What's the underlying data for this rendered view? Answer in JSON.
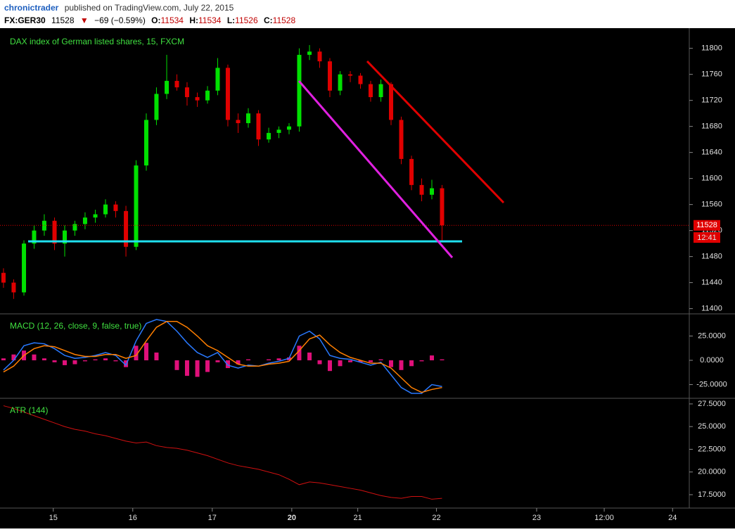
{
  "header": {
    "user": "chronictrader",
    "published": "published on TradingView.com, July 22, 2015",
    "symbol": "FX:GER30",
    "price": 11528,
    "arrow": "▼",
    "change": "−69 (−0.59%)",
    "ohlc_labels": [
      "O:",
      "H:",
      "L:",
      "C:"
    ],
    "ohlc": [
      11534,
      11534,
      11526,
      11528
    ]
  },
  "countdown": "12:41",
  "chart_data": [
    {
      "type": "candlestick",
      "title": "DAX index of German listed shares, 15, FXCM",
      "up_color": "#00e000",
      "down_color": "#e00000",
      "last_price": 11528,
      "last_price_color": "#e00000",
      "x": [
        0.374,
        0.502,
        0.631,
        0.759,
        0.887,
        1.016,
        1.144,
        1.272,
        1.4,
        1.529,
        1.657,
        1.785,
        1.914,
        2.042,
        2.17,
        2.298,
        2.427,
        2.555,
        2.683,
        2.812,
        2.94,
        3.068,
        3.196,
        3.325,
        3.453,
        3.581,
        3.71,
        3.838,
        3.966,
        4.094,
        4.223,
        4.351,
        4.479,
        4.608,
        4.736,
        4.864,
        4.992,
        5.121,
        5.249,
        5.377,
        5.506,
        5.634,
        5.762,
        5.89
      ],
      "open": [
        11455,
        11440,
        11425,
        11500,
        11520,
        11535,
        11500,
        11520,
        11530,
        11540,
        11545,
        11560,
        11550,
        11495,
        11620,
        11690,
        11730,
        11750,
        11740,
        11725,
        11720,
        11735,
        11770,
        11690,
        11685,
        11700,
        11660,
        11670,
        11675,
        11680,
        11790,
        11795,
        11780,
        11735,
        11760,
        11758,
        11745,
        11725,
        11745,
        11690,
        11630,
        11590,
        11575,
        11585
      ],
      "high": [
        11462,
        11445,
        11505,
        11528,
        11545,
        11540,
        11528,
        11535,
        11548,
        11552,
        11568,
        11565,
        11558,
        11628,
        11700,
        11740,
        11790,
        11760,
        11748,
        11732,
        11742,
        11785,
        11775,
        11700,
        11708,
        11705,
        11678,
        11680,
        11685,
        11800,
        11805,
        11800,
        11785,
        11765,
        11765,
        11762,
        11750,
        11752,
        11748,
        11695,
        11635,
        11600,
        11598,
        11590
      ],
      "low": [
        11432,
        11415,
        11420,
        11492,
        11512,
        11490,
        11480,
        11512,
        11522,
        11532,
        11540,
        11540,
        11480,
        11490,
        11612,
        11682,
        11722,
        11735,
        11712,
        11710,
        11715,
        11728,
        11680,
        11670,
        11678,
        11650,
        11655,
        11662,
        11668,
        11672,
        11782,
        11770,
        11725,
        11728,
        11748,
        11738,
        11718,
        11718,
        11682,
        11622,
        11582,
        11565,
        11568,
        11505
      ],
      "close": [
        11440,
        11425,
        11500,
        11520,
        11535,
        11500,
        11520,
        11530,
        11540,
        11545,
        11560,
        11550,
        11495,
        11620,
        11690,
        11730,
        11750,
        11740,
        11725,
        11720,
        11735,
        11770,
        11690,
        11685,
        11700,
        11660,
        11670,
        11675,
        11680,
        11790,
        11795,
        11780,
        11735,
        11760,
        11758,
        11745,
        11725,
        11745,
        11690,
        11630,
        11590,
        11575,
        11585,
        11528
      ],
      "xlim": [
        0.33,
        9.0
      ],
      "xticks": [
        {
          "value": 1,
          "label": "15"
        },
        {
          "value": 2,
          "label": "16"
        },
        {
          "value": 3,
          "label": "17"
        },
        {
          "value": 4,
          "label": "20"
        },
        {
          "value": 4.83,
          "label": "21"
        },
        {
          "value": 5.82,
          "label": "22"
        },
        {
          "value": 7.08,
          "label": "23"
        },
        {
          "value": 7.93,
          "label": "12:00"
        },
        {
          "value": 8.79,
          "label": "24"
        }
      ],
      "ylim": [
        11392,
        11831
      ],
      "yticks": [
        11400,
        11440,
        11480,
        11520,
        11560,
        11600,
        11640,
        11680,
        11720,
        11760,
        11800
      ]
    },
    {
      "type": "macd",
      "title": "MACD (12, 26, close, 9, false, true)",
      "x": [
        0.374,
        0.502,
        0.631,
        0.759,
        0.887,
        1.016,
        1.144,
        1.272,
        1.4,
        1.529,
        1.657,
        1.785,
        1.914,
        2.042,
        2.17,
        2.298,
        2.427,
        2.555,
        2.683,
        2.812,
        2.94,
        3.068,
        3.196,
        3.325,
        3.453,
        3.581,
        3.71,
        3.838,
        3.966,
        4.094,
        4.223,
        4.351,
        4.479,
        4.608,
        4.736,
        4.864,
        4.992,
        5.121,
        5.249,
        5.377,
        5.506,
        5.634,
        5.762,
        5.89
      ],
      "histogram_color": "#e0107a",
      "histogram": [
        2,
        6,
        10,
        6,
        2,
        -2,
        -5,
        -4,
        -1,
        1,
        2,
        -1,
        -7,
        15,
        18,
        8,
        0,
        -10,
        -16,
        -17,
        -12,
        -2,
        -8,
        -4,
        1,
        0,
        1,
        2,
        3,
        15,
        8,
        -4,
        -11,
        -6,
        -2,
        -2,
        -2,
        1,
        -7,
        -10,
        -6,
        -1,
        5,
        1
      ],
      "series": [
        {
          "color": "#2979ff",
          "values": [
            -10,
            0,
            15,
            18,
            17,
            12,
            5,
            2,
            3,
            5,
            8,
            5,
            -5,
            20,
            38,
            42,
            40,
            30,
            18,
            8,
            3,
            8,
            -5,
            -8,
            -5,
            -6,
            -3,
            -1,
            2,
            25,
            30,
            22,
            5,
            2,
            1,
            -2,
            -5,
            -2,
            -15,
            -28,
            -34,
            -34,
            -25,
            -27
          ]
        },
        {
          "color": "#ff7f00",
          "values": [
            -12,
            -6,
            5,
            12,
            15,
            14,
            10,
            6,
            4,
            4,
            6,
            6,
            2,
            5,
            20,
            34,
            40,
            40,
            34,
            25,
            15,
            10,
            3,
            -4,
            -6,
            -6,
            -4,
            -3,
            -1,
            10,
            22,
            26,
            16,
            8,
            3,
            0,
            -3,
            -3,
            -8,
            -18,
            -28,
            -33,
            -30,
            -28
          ]
        }
      ],
      "xlim": [
        0.33,
        9.0
      ],
      "ylim": [
        -39.1,
        47.1
      ],
      "yticks": [
        {
          "value": -25,
          "label": "-25.0000"
        },
        {
          "value": 0,
          "label": "0.0000"
        },
        {
          "value": 25,
          "label": "25.0000"
        }
      ]
    },
    {
      "type": "line",
      "title": "ATR (144)",
      "x": [
        0.374,
        0.502,
        0.631,
        0.759,
        0.887,
        1.016,
        1.144,
        1.272,
        1.4,
        1.529,
        1.657,
        1.785,
        1.914,
        2.042,
        2.17,
        2.298,
        2.427,
        2.555,
        2.683,
        2.812,
        2.94,
        3.068,
        3.196,
        3.325,
        3.453,
        3.581,
        3.71,
        3.838,
        3.966,
        4.094,
        4.223,
        4.351,
        4.479,
        4.608,
        4.736,
        4.864,
        4.992,
        5.121,
        5.249,
        5.377,
        5.506,
        5.634,
        5.762,
        5.89
      ],
      "color": "#d01010",
      "values": [
        27.3,
        27.0,
        26.6,
        26.2,
        25.8,
        25.4,
        25.0,
        24.7,
        24.5,
        24.2,
        24.0,
        23.7,
        23.4,
        23.2,
        23.3,
        22.9,
        22.7,
        22.6,
        22.4,
        22.1,
        21.8,
        21.4,
        21.0,
        20.7,
        20.5,
        20.3,
        20.0,
        19.7,
        19.2,
        18.6,
        18.9,
        18.8,
        18.6,
        18.4,
        18.2,
        18.0,
        17.7,
        17.4,
        17.2,
        17.1,
        17.3,
        17.3,
        17.0,
        17.1
      ],
      "xlim": [
        0.33,
        9.0
      ],
      "ylim": [
        16.18,
        28.04
      ],
      "yticks": [
        {
          "value": 17.5,
          "label": "17.5000"
        },
        {
          "value": 20,
          "label": "20.0000"
        },
        {
          "value": 22.5,
          "label": "22.5000"
        },
        {
          "value": 25,
          "label": "25.0000"
        },
        {
          "value": 27.5,
          "label": "27.5000"
        }
      ]
    }
  ]
}
